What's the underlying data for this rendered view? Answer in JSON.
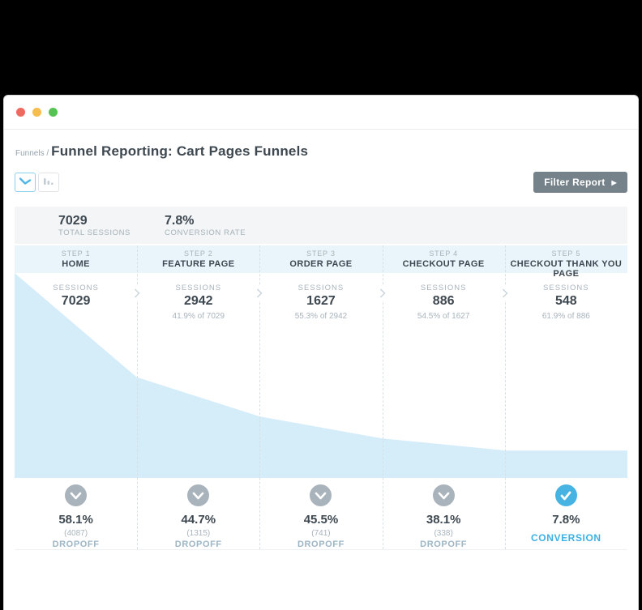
{
  "titlebar": {
    "dots": [
      "close",
      "minimize",
      "maximize"
    ]
  },
  "breadcrumb": {
    "parent": "Funnels /",
    "title": "Funnel Reporting: Cart Pages Funnels"
  },
  "toolbar": {
    "view_toggles": [
      "line-chart-view",
      "bar-chart-view"
    ],
    "filter_label": "Filter Report",
    "filter_arrow": "▶"
  },
  "summary": {
    "sessions_value": "7029",
    "sessions_label": "TOTAL SESSIONS",
    "rate_value": "7.8%",
    "rate_label": "CONVERSION RATE"
  },
  "funnel": {
    "steps": [
      {
        "step_label": "STEP 1",
        "page": "HOME",
        "sessions_label": "SESSIONS",
        "sessions": "7029",
        "of_previous": ""
      },
      {
        "step_label": "STEP 2",
        "page": "FEATURE PAGE",
        "sessions_label": "SESSIONS",
        "sessions": "2942",
        "of_previous": "41.9% of 7029"
      },
      {
        "step_label": "STEP 3",
        "page": "ORDER PAGE",
        "sessions_label": "SESSIONS",
        "sessions": "1627",
        "of_previous": "55.3% of 2942"
      },
      {
        "step_label": "STEP 4",
        "page": "CHECKOUT PAGE",
        "sessions_label": "SESSIONS",
        "sessions": "886",
        "of_previous": "54.5% of 1627"
      },
      {
        "step_label": "STEP 5",
        "page": "CHECKOUT THANK YOU PAGE",
        "sessions_label": "SESSIONS",
        "sessions": "548",
        "of_previous": "61.9% of 886"
      }
    ],
    "dropoffs": [
      {
        "pct": "58.1%",
        "count": "(4087)",
        "label": "DROPOFF"
      },
      {
        "pct": "44.7%",
        "count": "(1315)",
        "label": "DROPOFF"
      },
      {
        "pct": "45.5%",
        "count": "(741)",
        "label": "DROPOFF"
      },
      {
        "pct": "38.1%",
        "count": "(338)",
        "label": "DROPOFF"
      }
    ],
    "conversion": {
      "pct": "7.8%",
      "label": "CONVERSION"
    }
  },
  "chart_data": {
    "type": "area",
    "title": "Funnel Reporting: Cart Pages Funnels",
    "categories": [
      "HOME",
      "FEATURE PAGE",
      "ORDER PAGE",
      "CHECKOUT PAGE",
      "CHECKOUT THANK YOU PAGE"
    ],
    "values": [
      7029,
      2942,
      1627,
      886,
      548
    ],
    "pct_of_previous": [
      null,
      41.9,
      55.3,
      54.5,
      61.9
    ],
    "dropoff_pcts": [
      58.1,
      44.7,
      45.5,
      38.1
    ],
    "dropoff_counts": [
      4087,
      1315,
      741,
      338
    ],
    "total_sessions": 7029,
    "conversion_rate_pct": 7.8,
    "fill_color": "#d5edf9",
    "area_profile": [
      [
        0,
        1.0
      ],
      [
        0.199,
        0.492
      ],
      [
        0.4,
        0.3
      ],
      [
        0.6,
        0.193
      ],
      [
        0.801,
        0.134
      ],
      [
        1.0,
        0.134
      ]
    ]
  },
  "colors": {
    "accent_blue": "#47b3e3",
    "dropoff_gray": "#a9b3bc",
    "area_fill": "#d5edf9"
  }
}
